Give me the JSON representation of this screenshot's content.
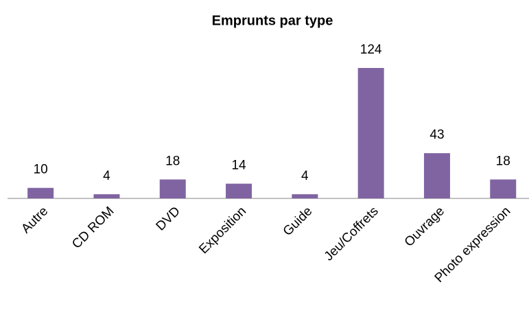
{
  "chart_data": {
    "type": "bar",
    "title": "Emprunts par type",
    "categories": [
      "Autre",
      "CD ROM",
      "DVD",
      "Exposition",
      "Guide",
      "Jeu/Coffrets",
      "Ouvrage",
      "Photo expression"
    ],
    "values": [
      10,
      4,
      18,
      14,
      4,
      124,
      43,
      18
    ],
    "color": "#8064a2"
  }
}
